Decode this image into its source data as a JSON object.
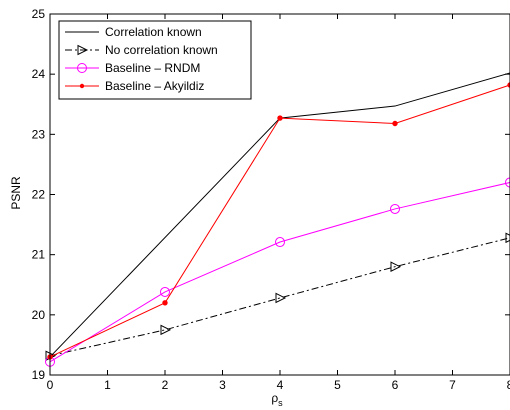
{
  "chart_data": {
    "type": "line",
    "xlabel_main": "ρ",
    "xlabel_sub": "s",
    "ylabel": "PSNR",
    "xlim": [
      0,
      8
    ],
    "ylim": [
      19,
      25
    ],
    "xticks": [
      0,
      1,
      2,
      3,
      4,
      5,
      6,
      7,
      8
    ],
    "yticks": [
      19,
      20,
      21,
      22,
      23,
      24,
      25
    ],
    "grid": false,
    "legend_position": "top-left",
    "series": [
      {
        "name": "Correlation known",
        "color": "#000000",
        "linestyle": "solid",
        "marker": "none",
        "x": [
          0,
          4,
          6,
          8
        ],
        "y": [
          19.3,
          23.27,
          23.47,
          24.02
        ]
      },
      {
        "name": "No correlation known",
        "color": "#000000",
        "linestyle": "dashdot",
        "marker": "triangle-right",
        "x": [
          0,
          2,
          4,
          6,
          8
        ],
        "y": [
          19.32,
          19.75,
          20.28,
          20.8,
          21.28
        ]
      },
      {
        "name": "Baseline – RNDM",
        "color": "#ff00ff",
        "linestyle": "solid",
        "marker": "circle",
        "x": [
          0,
          2,
          4,
          6,
          8
        ],
        "y": [
          19.22,
          20.38,
          21.21,
          21.76,
          22.2
        ]
      },
      {
        "name": "Baseline – Akyildiz",
        "color": "#ff0000",
        "linestyle": "solid",
        "marker": "dot",
        "x": [
          0,
          2,
          4,
          6,
          8
        ],
        "y": [
          19.3,
          20.2,
          23.27,
          23.18,
          23.82
        ]
      }
    ]
  }
}
